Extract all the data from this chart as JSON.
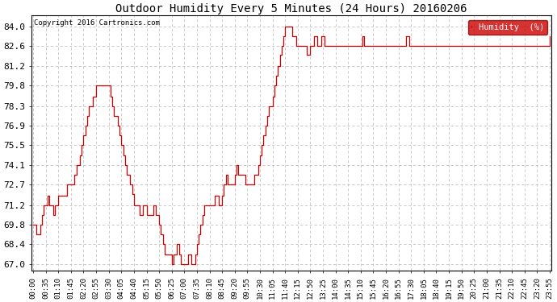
{
  "title": "Outdoor Humidity Every 5 Minutes (24 Hours) 20160206",
  "copyright": "Copyright 2016 Cartronics.com",
  "legend_label": "Humidity  (%)",
  "legend_bg": "#cc0000",
  "legend_text_color": "#ffffff",
  "line_color": "#cc0000",
  "background_color": "#ffffff",
  "grid_color": "#bbbbbb",
  "yticks": [
    67.0,
    68.4,
    69.8,
    71.2,
    72.7,
    74.1,
    75.5,
    76.9,
    78.3,
    79.8,
    81.2,
    82.6,
    84.0
  ],
  "ylim": [
    66.5,
    84.8
  ],
  "waypoints": [
    [
      0,
      69.8
    ],
    [
      1,
      69.8
    ],
    [
      2,
      69.1
    ],
    [
      3,
      69.1
    ],
    [
      4,
      69.8
    ],
    [
      5,
      70.5
    ],
    [
      6,
      71.2
    ],
    [
      7,
      71.2
    ],
    [
      8,
      71.9
    ],
    [
      9,
      71.2
    ],
    [
      10,
      71.2
    ],
    [
      11,
      70.5
    ],
    [
      12,
      71.2
    ],
    [
      13,
      71.2
    ],
    [
      14,
      71.9
    ],
    [
      15,
      71.9
    ],
    [
      16,
      71.9
    ],
    [
      17,
      71.9
    ],
    [
      18,
      71.9
    ],
    [
      19,
      72.7
    ],
    [
      20,
      72.7
    ],
    [
      21,
      72.7
    ],
    [
      22,
      72.7
    ],
    [
      23,
      73.4
    ],
    [
      24,
      74.1
    ],
    [
      25,
      74.1
    ],
    [
      26,
      74.8
    ],
    [
      27,
      75.5
    ],
    [
      28,
      76.2
    ],
    [
      29,
      76.9
    ],
    [
      30,
      77.6
    ],
    [
      31,
      78.3
    ],
    [
      32,
      78.3
    ],
    [
      33,
      79.0
    ],
    [
      34,
      79.0
    ],
    [
      35,
      79.8
    ],
    [
      36,
      79.8
    ],
    [
      37,
      79.8
    ],
    [
      38,
      79.8
    ],
    [
      39,
      79.8
    ],
    [
      40,
      79.8
    ],
    [
      41,
      79.8
    ],
    [
      42,
      79.8
    ],
    [
      43,
      79.0
    ],
    [
      44,
      78.3
    ],
    [
      45,
      77.6
    ],
    [
      46,
      77.6
    ],
    [
      47,
      76.9
    ],
    [
      48,
      76.2
    ],
    [
      49,
      75.5
    ],
    [
      50,
      74.8
    ],
    [
      51,
      74.1
    ],
    [
      52,
      73.4
    ],
    [
      53,
      73.4
    ],
    [
      54,
      72.7
    ],
    [
      55,
      72.0
    ],
    [
      56,
      71.2
    ],
    [
      57,
      71.2
    ],
    [
      58,
      71.2
    ],
    [
      59,
      70.5
    ],
    [
      60,
      70.5
    ],
    [
      61,
      71.2
    ],
    [
      62,
      71.2
    ],
    [
      63,
      70.5
    ],
    [
      64,
      70.5
    ],
    [
      65,
      70.5
    ],
    [
      66,
      70.5
    ],
    [
      67,
      71.2
    ],
    [
      68,
      70.5
    ],
    [
      69,
      70.5
    ],
    [
      70,
      69.8
    ],
    [
      71,
      69.1
    ],
    [
      72,
      68.4
    ],
    [
      73,
      67.7
    ],
    [
      74,
      67.7
    ],
    [
      75,
      67.7
    ],
    [
      76,
      67.7
    ],
    [
      77,
      67.0
    ],
    [
      78,
      67.7
    ],
    [
      79,
      67.7
    ],
    [
      80,
      68.4
    ],
    [
      81,
      67.7
    ],
    [
      82,
      67.0
    ],
    [
      83,
      67.0
    ],
    [
      84,
      67.0
    ],
    [
      85,
      67.0
    ],
    [
      86,
      67.7
    ],
    [
      87,
      67.7
    ],
    [
      88,
      67.0
    ],
    [
      89,
      67.0
    ],
    [
      90,
      67.7
    ],
    [
      91,
      68.4
    ],
    [
      92,
      69.1
    ],
    [
      93,
      69.8
    ],
    [
      94,
      70.5
    ],
    [
      95,
      71.2
    ],
    [
      96,
      71.2
    ],
    [
      97,
      71.2
    ],
    [
      98,
      71.2
    ],
    [
      99,
      71.2
    ],
    [
      100,
      71.2
    ],
    [
      101,
      71.9
    ],
    [
      102,
      71.9
    ],
    [
      103,
      71.2
    ],
    [
      104,
      71.2
    ],
    [
      105,
      71.9
    ],
    [
      106,
      72.7
    ],
    [
      107,
      73.4
    ],
    [
      108,
      72.7
    ],
    [
      109,
      72.7
    ],
    [
      110,
      72.7
    ],
    [
      111,
      72.7
    ],
    [
      112,
      73.4
    ],
    [
      113,
      74.1
    ],
    [
      114,
      73.4
    ],
    [
      115,
      73.4
    ],
    [
      116,
      73.4
    ],
    [
      117,
      73.4
    ],
    [
      118,
      72.7
    ],
    [
      119,
      72.7
    ],
    [
      120,
      72.7
    ],
    [
      121,
      72.7
    ],
    [
      122,
      72.7
    ],
    [
      123,
      73.4
    ],
    [
      124,
      73.4
    ],
    [
      125,
      74.1
    ],
    [
      126,
      74.8
    ],
    [
      127,
      75.5
    ],
    [
      128,
      76.2
    ],
    [
      129,
      76.9
    ],
    [
      130,
      77.6
    ],
    [
      131,
      78.3
    ],
    [
      132,
      78.3
    ],
    [
      133,
      79.0
    ],
    [
      134,
      79.8
    ],
    [
      135,
      80.5
    ],
    [
      136,
      81.2
    ],
    [
      137,
      82.0
    ],
    [
      138,
      82.6
    ],
    [
      139,
      83.3
    ],
    [
      140,
      84.0
    ],
    [
      141,
      84.0
    ],
    [
      142,
      84.0
    ],
    [
      143,
      84.0
    ],
    [
      144,
      83.3
    ],
    [
      145,
      83.3
    ],
    [
      146,
      82.6
    ],
    [
      147,
      82.6
    ],
    [
      148,
      82.6
    ],
    [
      149,
      82.6
    ],
    [
      150,
      82.6
    ],
    [
      151,
      82.6
    ],
    [
      152,
      82.0
    ],
    [
      153,
      82.0
    ],
    [
      154,
      82.6
    ],
    [
      155,
      82.6
    ],
    [
      156,
      83.3
    ],
    [
      157,
      83.3
    ],
    [
      158,
      82.6
    ],
    [
      159,
      82.6
    ],
    [
      160,
      83.3
    ],
    [
      161,
      83.3
    ],
    [
      162,
      82.6
    ],
    [
      163,
      82.6
    ],
    [
      164,
      82.6
    ],
    [
      165,
      82.6
    ],
    [
      166,
      82.6
    ],
    [
      167,
      82.6
    ],
    [
      168,
      82.6
    ],
    [
      169,
      82.6
    ],
    [
      170,
      82.6
    ],
    [
      171,
      82.6
    ],
    [
      172,
      82.6
    ],
    [
      173,
      82.6
    ],
    [
      174,
      82.6
    ],
    [
      175,
      82.6
    ],
    [
      176,
      82.6
    ],
    [
      177,
      82.6
    ],
    [
      178,
      82.6
    ],
    [
      179,
      82.6
    ],
    [
      180,
      82.6
    ],
    [
      181,
      82.6
    ],
    [
      182,
      82.6
    ],
    [
      183,
      83.3
    ],
    [
      184,
      82.6
    ],
    [
      185,
      82.6
    ],
    [
      186,
      82.6
    ],
    [
      187,
      82.6
    ],
    [
      188,
      82.6
    ],
    [
      189,
      82.6
    ],
    [
      190,
      82.6
    ],
    [
      191,
      82.6
    ],
    [
      192,
      82.6
    ],
    [
      193,
      82.6
    ],
    [
      194,
      82.6
    ],
    [
      195,
      82.6
    ],
    [
      196,
      82.6
    ],
    [
      197,
      82.6
    ],
    [
      198,
      82.6
    ],
    [
      199,
      82.6
    ],
    [
      200,
      82.6
    ],
    [
      201,
      82.6
    ],
    [
      202,
      82.6
    ],
    [
      203,
      82.6
    ],
    [
      204,
      82.6
    ],
    [
      205,
      82.6
    ],
    [
      206,
      82.6
    ],
    [
      207,
      83.3
    ],
    [
      208,
      83.3
    ],
    [
      209,
      82.6
    ],
    [
      210,
      82.6
    ],
    [
      211,
      82.6
    ],
    [
      212,
      82.6
    ],
    [
      213,
      82.6
    ],
    [
      214,
      82.6
    ],
    [
      215,
      82.6
    ],
    [
      216,
      82.6
    ],
    [
      217,
      82.6
    ],
    [
      218,
      82.6
    ],
    [
      219,
      82.6
    ],
    [
      220,
      82.6
    ],
    [
      221,
      82.6
    ],
    [
      222,
      82.6
    ],
    [
      223,
      82.6
    ],
    [
      224,
      82.6
    ],
    [
      225,
      82.6
    ],
    [
      226,
      82.6
    ],
    [
      227,
      82.6
    ],
    [
      228,
      82.6
    ],
    [
      229,
      82.6
    ],
    [
      230,
      82.6
    ],
    [
      231,
      82.6
    ],
    [
      232,
      82.6
    ],
    [
      233,
      82.6
    ],
    [
      234,
      82.6
    ],
    [
      235,
      82.6
    ],
    [
      236,
      82.6
    ],
    [
      237,
      82.6
    ],
    [
      238,
      82.6
    ],
    [
      239,
      82.6
    ],
    [
      240,
      82.6
    ],
    [
      241,
      82.6
    ],
    [
      242,
      82.6
    ],
    [
      243,
      82.6
    ],
    [
      244,
      82.6
    ],
    [
      245,
      82.6
    ],
    [
      246,
      82.6
    ],
    [
      247,
      82.6
    ],
    [
      248,
      82.6
    ],
    [
      249,
      82.6
    ],
    [
      250,
      82.6
    ],
    [
      251,
      82.6
    ],
    [
      252,
      82.6
    ],
    [
      253,
      82.6
    ],
    [
      254,
      82.6
    ],
    [
      255,
      82.6
    ],
    [
      256,
      82.6
    ],
    [
      257,
      82.6
    ],
    [
      258,
      82.6
    ],
    [
      259,
      82.6
    ],
    [
      260,
      82.6
    ],
    [
      261,
      82.6
    ],
    [
      262,
      82.6
    ],
    [
      263,
      82.6
    ],
    [
      264,
      82.6
    ],
    [
      265,
      82.6
    ],
    [
      266,
      82.6
    ],
    [
      267,
      82.6
    ],
    [
      268,
      82.6
    ],
    [
      269,
      82.6
    ],
    [
      270,
      82.6
    ],
    [
      271,
      82.6
    ],
    [
      272,
      82.6
    ],
    [
      273,
      82.6
    ],
    [
      274,
      82.6
    ],
    [
      275,
      82.6
    ],
    [
      276,
      82.6
    ],
    [
      277,
      82.6
    ],
    [
      278,
      82.6
    ],
    [
      279,
      82.6
    ],
    [
      280,
      82.6
    ],
    [
      281,
      82.6
    ],
    [
      282,
      82.6
    ],
    [
      283,
      82.6
    ],
    [
      284,
      82.6
    ],
    [
      285,
      82.6
    ],
    [
      286,
      82.6
    ],
    [
      287,
      83.3
    ]
  ],
  "x_label_step": 7,
  "n_points": 288
}
